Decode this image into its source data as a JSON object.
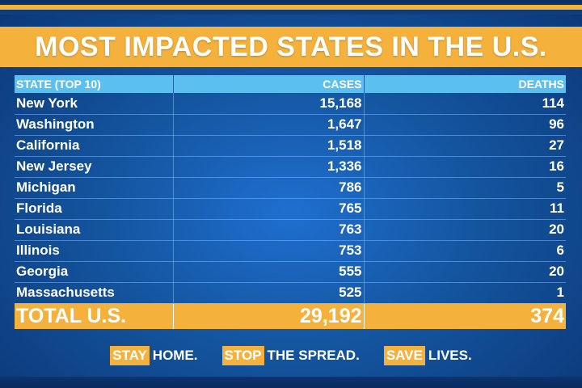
{
  "title": "MOST IMPACTED STATES IN THE U.S.",
  "table": {
    "headers": {
      "state": "STATE (TOP 10)",
      "cases": "CASES",
      "deaths": "DEATHS"
    },
    "rows": [
      {
        "state": "New York",
        "cases": "15,168",
        "deaths": "114"
      },
      {
        "state": "Washington",
        "cases": "1,647",
        "deaths": "96"
      },
      {
        "state": "California",
        "cases": "1,518",
        "deaths": "27"
      },
      {
        "state": "New Jersey",
        "cases": "1,336",
        "deaths": "16"
      },
      {
        "state": "Michigan",
        "cases": "786",
        "deaths": "5"
      },
      {
        "state": "Florida",
        "cases": "765",
        "deaths": "11"
      },
      {
        "state": "Louisiana",
        "cases": "763",
        "deaths": "20"
      },
      {
        "state": "Illinois",
        "cases": "753",
        "deaths": "6"
      },
      {
        "state": "Georgia",
        "cases": "555",
        "deaths": "20"
      },
      {
        "state": "Massachusetts",
        "cases": "525",
        "deaths": "1"
      }
    ],
    "total": {
      "label": "TOTAL U.S.",
      "cases": "29,192",
      "deaths": "374"
    }
  },
  "footer": [
    {
      "highlight": "STAY",
      "rest": "HOME."
    },
    {
      "highlight": "STOP",
      "rest": "THE SPREAD."
    },
    {
      "highlight": "SAVE",
      "rest": "LIVES."
    }
  ],
  "colors": {
    "accent": "#f4b23c",
    "header": "#5bc0f0",
    "background": "#14559f"
  }
}
